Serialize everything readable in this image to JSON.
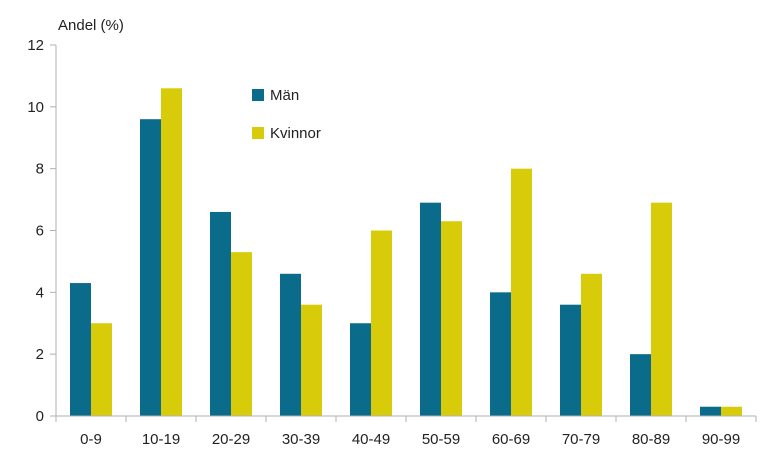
{
  "chart_data": {
    "type": "bar",
    "title": "",
    "ylabel": "Andel (%)",
    "xlabel": "",
    "ylim": [
      0,
      12
    ],
    "yticks": [
      0,
      2,
      4,
      6,
      8,
      10,
      12
    ],
    "grid": false,
    "legend_position": "top-left-inside",
    "categories": [
      "0-9",
      "10-19",
      "20-29",
      "30-39",
      "40-49",
      "50-59",
      "60-69",
      "70-79",
      "80-89",
      "90-99"
    ],
    "series": [
      {
        "name": "Män",
        "color": "#0a6b8a",
        "values": [
          4.3,
          9.6,
          6.6,
          4.6,
          3.0,
          6.9,
          4.0,
          3.6,
          2.0,
          0.3
        ]
      },
      {
        "name": "Kvinnor",
        "color": "#d8cc0a",
        "values": [
          3.0,
          10.6,
          5.3,
          3.6,
          6.0,
          6.3,
          8.0,
          4.6,
          6.9,
          0.3
        ]
      }
    ]
  },
  "colors": {
    "axis": "#b0b0b0",
    "text": "#222222",
    "background": "#ffffff"
  }
}
